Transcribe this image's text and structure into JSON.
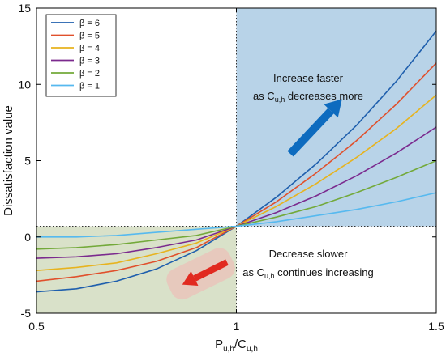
{
  "chart_data": {
    "type": "line",
    "xlabel": "P",
    "xlabel_sub1": "u,h",
    "xlabel_mid": "/C",
    "xlabel_sub2": "u,h",
    "ylabel": "Dissatisfaction value",
    "xlim": [
      0.5,
      1.5
    ],
    "ylim": [
      -5,
      15
    ],
    "xticks": [
      "0.5",
      "1",
      "1.5"
    ],
    "yticks": [
      "-5",
      "0",
      "5",
      "10",
      "15"
    ],
    "x": [
      0.5,
      0.6,
      0.7,
      0.8,
      0.9,
      1.0,
      1.1,
      1.2,
      1.3,
      1.4,
      1.5
    ],
    "grid": false,
    "legend_position": "top-left",
    "reference_point": {
      "x": 1.0,
      "y": 0.7
    },
    "shaded_regions": [
      {
        "name": "upper-right",
        "x": [
          1.0,
          1.5
        ],
        "y": [
          0.7,
          15
        ],
        "color": "#b8d3e8"
      },
      {
        "name": "lower-left",
        "x": [
          0.5,
          1.0
        ],
        "y": [
          -5,
          0.7
        ],
        "color": "#d9e1c9"
      }
    ],
    "series": [
      {
        "name": "β = 6",
        "color": "#1f5fad",
        "values": [
          -3.6,
          -3.4,
          -2.9,
          -2.1,
          -0.9,
          0.7,
          2.6,
          4.8,
          7.3,
          10.2,
          13.5
        ]
      },
      {
        "name": "β = 5",
        "color": "#e0502c",
        "values": [
          -2.9,
          -2.6,
          -2.2,
          -1.6,
          -0.7,
          0.7,
          2.3,
          4.2,
          6.3,
          8.7,
          11.4
        ]
      },
      {
        "name": "β = 4",
        "color": "#e7b31e",
        "values": [
          -2.2,
          -2.0,
          -1.7,
          -1.1,
          -0.4,
          0.7,
          2.0,
          3.5,
          5.2,
          7.1,
          9.3
        ]
      },
      {
        "name": "β = 3",
        "color": "#7b2a8e",
        "values": [
          -1.4,
          -1.3,
          -1.1,
          -0.7,
          -0.2,
          0.7,
          1.6,
          2.7,
          4.0,
          5.5,
          7.2
        ]
      },
      {
        "name": "β = 2",
        "color": "#73a93a",
        "values": [
          -0.8,
          -0.7,
          -0.5,
          -0.2,
          0.1,
          0.7,
          1.3,
          2.0,
          2.9,
          3.9,
          5.0
        ]
      },
      {
        "name": "β = 1",
        "color": "#56b9ef",
        "values": [
          0.0,
          0.0,
          0.1,
          0.3,
          0.5,
          0.7,
          1.0,
          1.4,
          1.8,
          2.3,
          2.9
        ]
      }
    ],
    "annotations": {
      "upper_line1": "Increase faster",
      "upper_line2_pre": "as C",
      "upper_line2_sub": "u,h",
      "upper_line2_post": " decreases more",
      "lower_line1": "Decrease slower",
      "lower_line2_pre": "as C",
      "lower_line2_sub": "u,h",
      "lower_line2_post": " continues increasing",
      "arrow_up_color": "#0d6bbf",
      "arrow_down_color": "#e12a20"
    }
  }
}
